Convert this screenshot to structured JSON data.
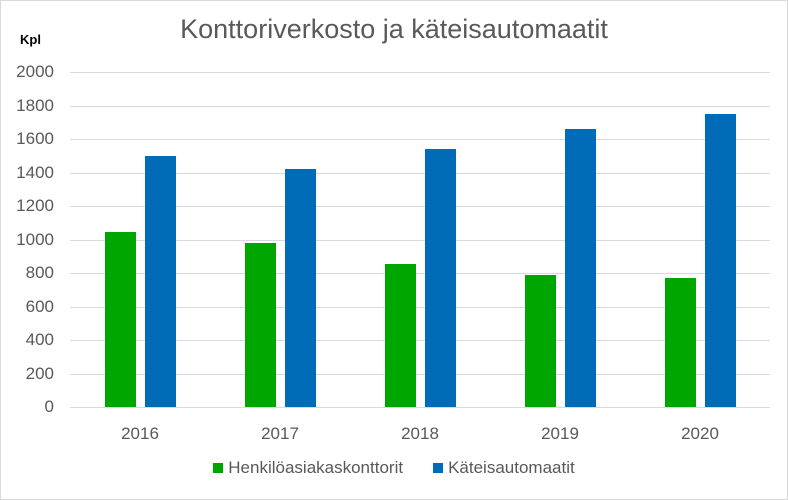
{
  "chart_data": {
    "type": "bar",
    "title": "Konttoriverkosto ja käteisautomaatit",
    "xlabel": "",
    "ylabel": "Kpl",
    "ylim": [
      0,
      2000
    ],
    "yticks": [
      0,
      200,
      400,
      600,
      800,
      1000,
      1200,
      1400,
      1600,
      1800,
      2000
    ],
    "grid": true,
    "legend_position": "bottom",
    "categories": [
      "2016",
      "2017",
      "2018",
      "2019",
      "2020"
    ],
    "series": [
      {
        "name": "Henkilöasiakaskonttorit",
        "color": "#00a600",
        "values": [
          1045,
          980,
          855,
          790,
          770
        ]
      },
      {
        "name": "Käteisautomaatit",
        "color": "#006bb6",
        "values": [
          1500,
          1420,
          1540,
          1660,
          1750
        ]
      }
    ]
  }
}
